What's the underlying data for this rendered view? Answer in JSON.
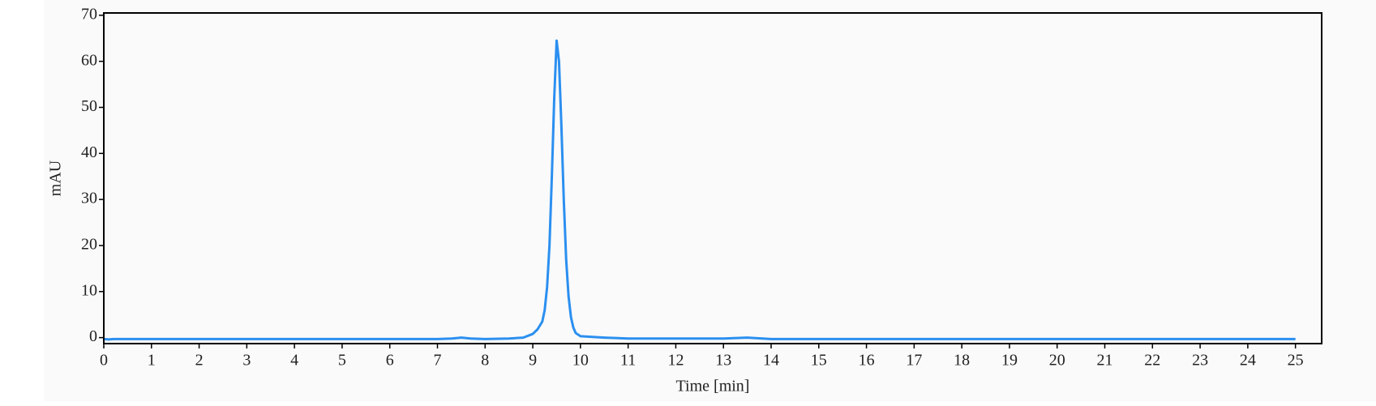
{
  "chart_data": {
    "type": "line",
    "xlabel": "Time [min]",
    "ylabel": "mAU",
    "x": [
      0,
      0.1,
      0.2,
      7.0,
      7.3,
      7.5,
      7.7,
      8.0,
      8.5,
      8.8,
      9.0,
      9.1,
      9.2,
      9.25,
      9.3,
      9.35,
      9.4,
      9.45,
      9.5,
      9.55,
      9.6,
      9.65,
      9.7,
      9.75,
      9.8,
      9.85,
      9.9,
      10.0,
      10.5,
      11.0,
      13.0,
      13.5,
      14.0,
      25.0
    ],
    "series": [
      {
        "color": "#2b8ff0",
        "values": [
          -0.3,
          -0.4,
          -0.3,
          -0.3,
          -0.2,
          0.0,
          -0.2,
          -0.3,
          -0.2,
          0.0,
          0.8,
          1.8,
          3.5,
          6,
          11,
          20,
          35,
          52,
          64.5,
          60,
          46,
          30,
          17,
          9,
          4.5,
          2.2,
          1.0,
          0.3,
          0.0,
          -0.2,
          -0.2,
          0.0,
          -0.3,
          -0.3
        ]
      }
    ],
    "xlim": [
      0,
      25.55
    ],
    "ylim": [
      -1.3,
      70.5
    ],
    "xticks": [
      0,
      1,
      2,
      3,
      4,
      5,
      6,
      7,
      8,
      9,
      10,
      11,
      12,
      13,
      14,
      15,
      16,
      17,
      18,
      19,
      20,
      21,
      22,
      23,
      24,
      25
    ],
    "yticks": [
      0,
      10,
      20,
      30,
      40,
      50,
      60,
      70
    ]
  }
}
